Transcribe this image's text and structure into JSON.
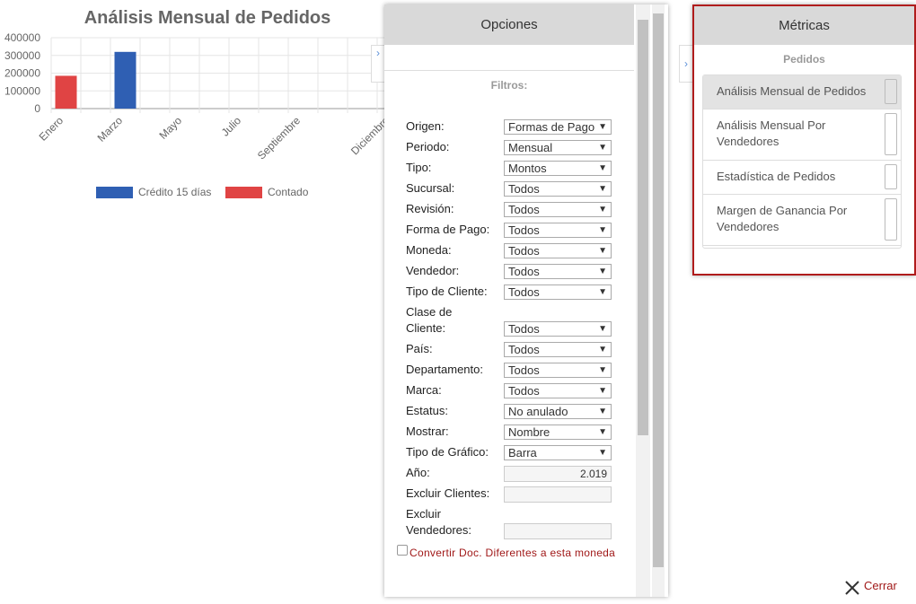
{
  "chart": {
    "type": "bar",
    "title": "Análisis Mensual de Pedidos",
    "categories": [
      "Enero",
      null,
      "Marzo",
      null,
      "Mayo",
      null,
      "Julio",
      null,
      "Septiembre",
      null,
      null,
      "Diciembre"
    ],
    "series": [
      {
        "name": "Crédito 15 días",
        "color": "#2f5fb3",
        "values": [
          0,
          0,
          320000,
          0,
          0,
          0,
          0,
          0,
          0,
          0,
          0,
          0
        ]
      },
      {
        "name": "Contado",
        "color": "#e04444",
        "values": [
          185000,
          0,
          0,
          0,
          0,
          0,
          0,
          0,
          0,
          0,
          0,
          0
        ]
      }
    ],
    "ylim": [
      0,
      400000
    ],
    "yticks": [
      0,
      100000,
      200000,
      300000,
      400000
    ],
    "grid": true
  },
  "options": {
    "title": "Opciones",
    "section": "Filtros:",
    "filters": [
      {
        "label": "Origen:",
        "value": "Formas de Pago"
      },
      {
        "label": "Periodo:",
        "value": "Mensual"
      },
      {
        "label": "Tipo:",
        "value": "Montos"
      },
      {
        "label": "Sucursal:",
        "value": "Todos"
      },
      {
        "label": "Revisión:",
        "value": "Todos"
      },
      {
        "label": "Forma de Pago:",
        "value": "Todos"
      },
      {
        "label": "Moneda:",
        "value": "Todos"
      },
      {
        "label": "Vendedor:",
        "value": "Todos"
      },
      {
        "label": "Tipo de Cliente:",
        "value": "Todos"
      },
      {
        "label": "Clase de Cliente:",
        "value": "Todos"
      },
      {
        "label": "País:",
        "value": "Todos"
      },
      {
        "label": "Departamento:",
        "value": "Todos"
      },
      {
        "label": "Marca:",
        "value": "Todos"
      },
      {
        "label": "Estatus:",
        "value": "No anulado"
      },
      {
        "label": "Mostrar:",
        "value": "Nombre"
      },
      {
        "label": "Tipo de Gráfico:",
        "value": "Barra"
      },
      {
        "label": "Año:",
        "value": "2.019"
      },
      {
        "label": "Excluir Clientes:"
      },
      {
        "label": "Excluir Vendedores:"
      }
    ],
    "checkbox": "Convertir Doc. Diferentes a esta moneda"
  },
  "metrics": {
    "title": "Métricas",
    "group": "Pedidos",
    "items": [
      "Análisis Mensual de Pedidos",
      "Análisis Mensual Por Vendedores",
      "Estadística de Pedidos",
      "Margen de Ganancia Por Vendedores"
    ]
  },
  "close": "Cerrar"
}
